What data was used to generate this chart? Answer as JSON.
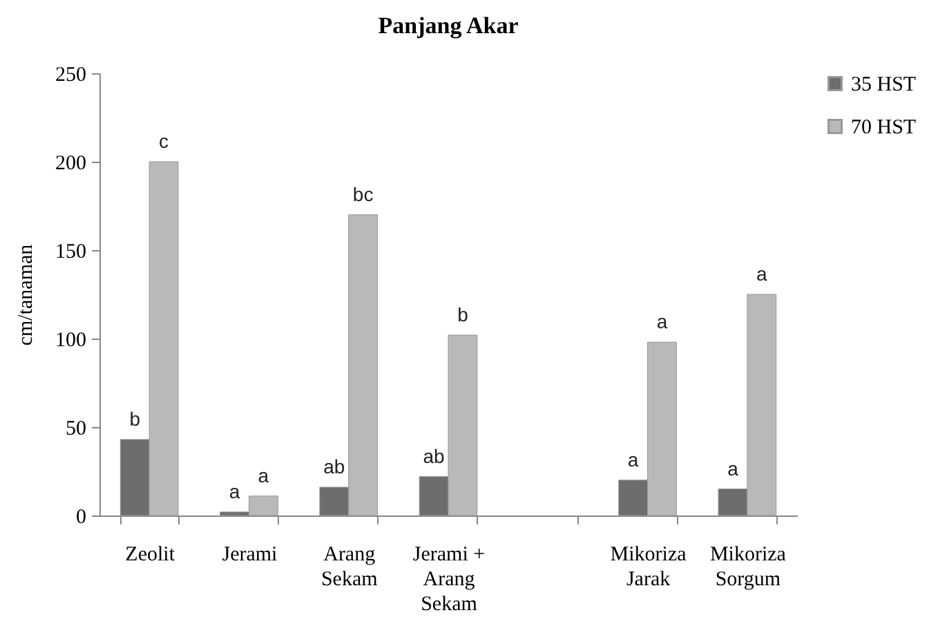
{
  "chart_data": {
    "type": "bar",
    "title": "Panjang Akar",
    "ylabel": "cm/tanaman",
    "categories": [
      "Zeolit",
      "Jerami",
      "Arang Sekam",
      "Jerami + Arang Sekam",
      null,
      "Mikoriza Jarak",
      "Mikoriza Sorgum"
    ],
    "series": [
      {
        "name": "35 HST",
        "color": "#6d6d6d",
        "values": [
          43,
          2,
          16,
          22,
          null,
          20,
          15
        ]
      },
      {
        "name": "70 HST",
        "color": "#b9b9b9",
        "values": [
          200,
          11,
          170,
          102,
          null,
          98,
          125
        ]
      }
    ],
    "ylim": [
      0,
      250
    ],
    "yticks": [
      0,
      50,
      100,
      150,
      200,
      250
    ],
    "grid": false,
    "legend": "right",
    "annotations": [
      {
        "text": "b",
        "x": "Zeolit",
        "y": 43
      },
      {
        "text": "c",
        "x": "Zeolit",
        "y": 200
      },
      {
        "text": "a",
        "x": "Jerami",
        "y": 2
      },
      {
        "text": "a",
        "x": "Jerami",
        "y": 11
      },
      {
        "text": "ab",
        "x": "Arang Sekam",
        "y": 16
      },
      {
        "text": "bc",
        "x": "Arang Sekam",
        "y": 170
      },
      {
        "text": "ab",
        "x": "Jerami + Arang Sekam",
        "y": 22
      },
      {
        "text": "b",
        "x": "Jerami + Arang Sekam",
        "y": 102
      },
      {
        "text": "a",
        "x": "Mikoriza Jarak",
        "y": 20
      },
      {
        "text": "a",
        "x": "Mikoriza Jarak",
        "y": 98
      },
      {
        "text": "a",
        "x": "Mikoriza Sorgum",
        "y": 15
      },
      {
        "text": "a",
        "x": "Mikoriza Sorgum",
        "y": 125
      }
    ]
  }
}
